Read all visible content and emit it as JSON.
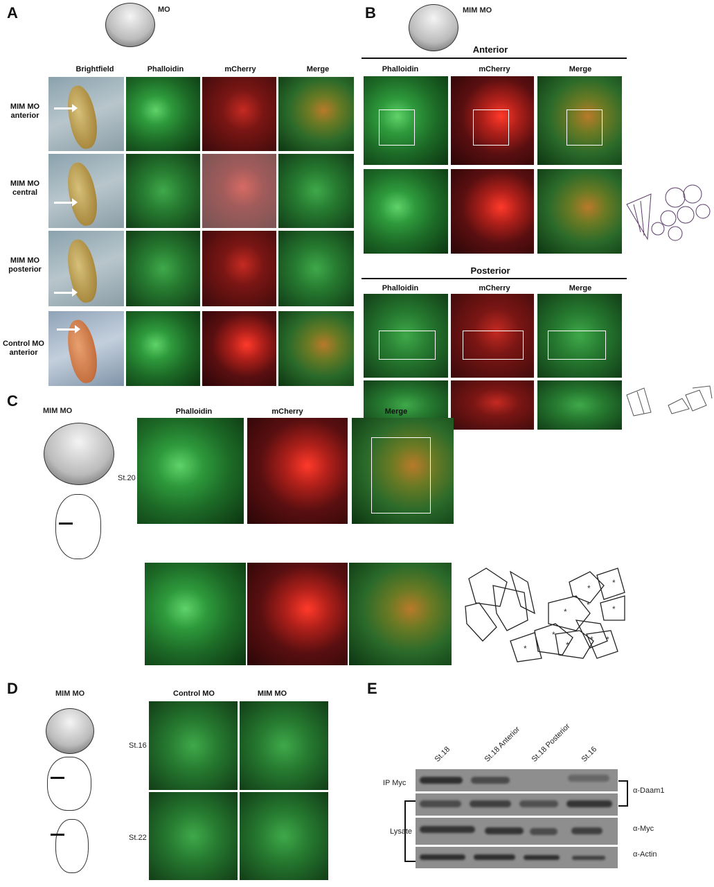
{
  "panelA": {
    "label": "A",
    "embryo_label": "MO",
    "headers": [
      "Brightfield",
      "Phalloidin",
      "mCherry",
      "Merge"
    ],
    "rows": [
      {
        "label": "MIM MO anterior"
      },
      {
        "label": "MIM MO central"
      },
      {
        "label": "MIM MO posterior"
      },
      {
        "label": "Control MO anterior"
      }
    ]
  },
  "panelB": {
    "label": "B",
    "embryo_label": "MIM MO",
    "anterior": {
      "title": "Anterior",
      "headers": [
        "Phalloidin",
        "mCherry",
        "Merge"
      ]
    },
    "posterior": {
      "title": "Posterior",
      "headers": [
        "Phalloidin",
        "mCherry",
        "Merge"
      ]
    }
  },
  "panelC": {
    "label": "C",
    "embryo_label": "MIM MO",
    "stage": "St.20",
    "headers": [
      "Phalloidin",
      "mCherry",
      "Merge"
    ]
  },
  "panelD": {
    "label": "D",
    "embryo_label": "MIM MO",
    "headers": [
      "Control MO",
      "MIM MO"
    ],
    "stages": [
      "St.16",
      "St.22"
    ]
  },
  "panelE": {
    "label": "E",
    "lanes": [
      "St.18",
      "St.18 Anterior",
      "St.18 Posterior",
      "St.16"
    ],
    "left_labels": [
      "IP Myc",
      "Lysate"
    ],
    "right_labels": [
      "α-Daam1",
      "α-Myc",
      "α-Actin"
    ]
  },
  "colors": {
    "phalloidin": "#2e9a3c",
    "mcherry": "#c0201a",
    "merge": "#6a7a24"
  }
}
